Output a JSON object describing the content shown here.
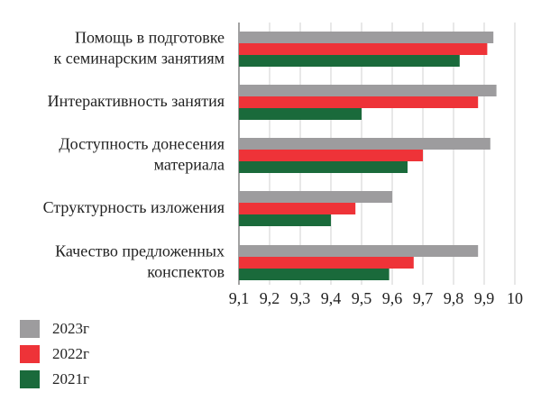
{
  "chart_data": {
    "type": "bar",
    "orientation": "horizontal",
    "title": "",
    "xlabel": "",
    "ylabel": "",
    "xlim": [
      9.1,
      10
    ],
    "xticks": [
      "9,1",
      "9,2",
      "9,3",
      "9,4",
      "9,5",
      "9,6",
      "9,7",
      "9,8",
      "9,9",
      "10"
    ],
    "grid": "vertical",
    "legend_position": "bottom-left",
    "categories": [
      [
        "Помощь в подготовке",
        "к семинарским занятиям"
      ],
      [
        "Интерактивность занятия"
      ],
      [
        "Доступность донесения",
        "материала"
      ],
      [
        "Структурность изложения"
      ],
      [
        "Качество предложенных",
        "конспектов"
      ]
    ],
    "series": [
      {
        "name": "2023г",
        "color": "#9d9c9e",
        "values": [
          9.93,
          9.94,
          9.92,
          9.6,
          9.88
        ]
      },
      {
        "name": "2022г",
        "color": "#ee3338",
        "values": [
          9.91,
          9.88,
          9.7,
          9.48,
          9.67
        ]
      },
      {
        "name": "2021г",
        "color": "#1a6a3b",
        "values": [
          9.82,
          9.5,
          9.65,
          9.4,
          9.59
        ]
      }
    ]
  }
}
